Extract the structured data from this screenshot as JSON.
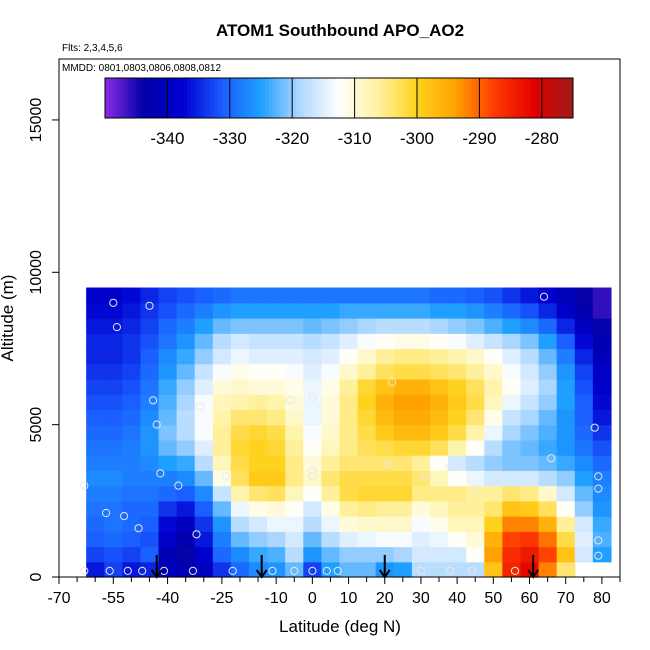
{
  "chart_data": {
    "type": "heatmap",
    "title": "ATOM1 Southbound APO_AO2",
    "flights_note": "Flts: 2,3,4,5,6",
    "dates_note": "MMDD: 0801,0803,0806,0808,0812",
    "xlabel": "Latitude (deg N)",
    "ylabel": "Altitude (m)",
    "xlim": [
      -70,
      85
    ],
    "ylim": [
      0,
      17000
    ],
    "x_ticks": [
      -70,
      -55,
      -40,
      -25,
      -10,
      0,
      10,
      20,
      30,
      40,
      50,
      60,
      70,
      80
    ],
    "x_tick_labels": [
      "-70",
      "-55",
      "-40",
      "-25",
      "-10",
      "0",
      "10",
      "20",
      "30",
      "40",
      "50",
      "60",
      "70",
      "80"
    ],
    "x_minor_ticks": [
      -65,
      -60,
      -50,
      -45,
      -35,
      -30,
      -20,
      -15,
      -5,
      5,
      15,
      25,
      35,
      45,
      55,
      65,
      75,
      85
    ],
    "y_ticks": [
      0,
      5000,
      10000,
      15000
    ],
    "y_tick_labels": [
      "0",
      "5000",
      "10000",
      "15000"
    ],
    "colorbar": {
      "range": [
        -350,
        -275
      ],
      "ticks": [
        -340,
        -330,
        -320,
        -310,
        -300,
        -290,
        -280
      ],
      "tick_labels": [
        "-340",
        "-330",
        "-320",
        "-310",
        "-300",
        "-290",
        "-280"
      ],
      "colors": [
        "#8a2be2",
        "#0000a8",
        "#0000d0",
        "#1a5cff",
        "#1f9fff",
        "#b0d8ff",
        "#ffffff",
        "#fff2a0",
        "#ffd21f",
        "#ffa000",
        "#ff3a00",
        "#e00000",
        "#9e1a1a"
      ]
    },
    "grid_columns": [
      -60,
      -55,
      -50,
      -45,
      -40,
      -35,
      -30,
      -25,
      -20,
      -15,
      -10,
      -5,
      0,
      5,
      10,
      15,
      20,
      25,
      30,
      35,
      40,
      45,
      50,
      55,
      60,
      65,
      70,
      75,
      80
    ],
    "grid_rows": [
      250,
      750,
      1250,
      1750,
      2250,
      2750,
      3250,
      3750,
      4250,
      4750,
      5250,
      5750,
      6250,
      6750,
      7250,
      7750,
      8250,
      8750,
      9250
    ],
    "grid_values": [
      [
        -336,
        -333,
        -336,
        -335,
        -341,
        -342,
        -340,
        -334,
        -330,
        -327,
        -326,
        -322,
        -333,
        -325,
        -322,
        -322,
        -326,
        -325,
        -318,
        -318,
        -318,
        -318,
        -298,
        -285,
        -282,
        -292,
        -304,
        null,
        null
      ],
      [
        -333,
        -332,
        -333,
        -331,
        -342,
        -344,
        -338,
        -330,
        -327,
        -324,
        -323,
        -318,
        -326,
        -322,
        -320,
        -320,
        -320,
        -319,
        -316,
        -316,
        -316,
        -312,
        -294,
        -286,
        -284,
        -288,
        -298,
        -316,
        -325
      ],
      [
        -331,
        -330,
        -331,
        -332,
        -339,
        -343,
        -336,
        -328,
        -322,
        -320,
        -319,
        -316,
        -322,
        -318,
        -315,
        -314,
        -313,
        -313,
        -315,
        -314,
        -312,
        -310,
        -296,
        -288,
        -287,
        -291,
        -302,
        -315,
        -323
      ],
      [
        -330,
        -329,
        -330,
        -331,
        -337,
        -340,
        -334,
        -326,
        -318,
        -316,
        -314,
        -314,
        -318,
        -314,
        -310,
        -309,
        -309,
        -309,
        -313,
        -311,
        -308,
        -308,
        -300,
        -292,
        -292,
        -296,
        -306,
        -316,
        -324
      ],
      [
        -329,
        -329,
        -330,
        -330,
        -334,
        -336,
        -331,
        -322,
        -314,
        -311,
        -310,
        -312,
        -316,
        -311,
        -306,
        -305,
        -306,
        -306,
        -310,
        -308,
        -306,
        -306,
        -304,
        -298,
        -299,
        -303,
        -312,
        -320,
        -326
      ],
      [
        -328,
        -328,
        -329,
        -329,
        -330,
        -331,
        -327,
        -317,
        -307,
        -304,
        -303,
        -308,
        -312,
        -306,
        -302,
        -301,
        -301,
        -301,
        -305,
        -305,
        -305,
        -306,
        -306,
        -304,
        -305,
        -309,
        -316,
        -322,
        -327
      ],
      [
        -327,
        -327,
        -328,
        -328,
        -328,
        -327,
        -322,
        -311,
        -303,
        -299,
        -299,
        -305,
        -309,
        -304,
        -302,
        -302,
        -302,
        -302,
        -304,
        -308,
        -312,
        -314,
        -316,
        -316,
        -316,
        -318,
        -320,
        -325,
        -328
      ],
      [
        -328,
        -328,
        -328,
        -327,
        -325,
        -324,
        -318,
        -308,
        -302,
        -300,
        -300,
        -305,
        -310,
        -306,
        -304,
        -304,
        -304,
        -304,
        -306,
        -312,
        -316,
        -318,
        -320,
        -321,
        -321,
        -322,
        -324,
        -327,
        -330
      ],
      [
        -329,
        -329,
        -328,
        -326,
        -322,
        -320,
        -315,
        -306,
        -301,
        -300,
        -301,
        -306,
        -312,
        -308,
        -305,
        -303,
        -302,
        -301,
        -301,
        -303,
        -307,
        -312,
        -318,
        -321,
        -322,
        -324,
        -326,
        -329,
        -332
      ],
      [
        -330,
        -330,
        -329,
        -326,
        -321,
        -318,
        -313,
        -306,
        -302,
        -301,
        -302,
        -307,
        -313,
        -309,
        -305,
        -302,
        -299,
        -297,
        -297,
        -299,
        -302,
        -307,
        -314,
        -319,
        -321,
        -323,
        -326,
        -330,
        -334
      ],
      [
        -331,
        -331,
        -330,
        -327,
        -322,
        -318,
        -313,
        -307,
        -304,
        -304,
        -305,
        -309,
        -314,
        -310,
        -305,
        -301,
        -297,
        -295,
        -295,
        -297,
        -300,
        -304,
        -311,
        -317,
        -319,
        -322,
        -326,
        -331,
        -336
      ],
      [
        -332,
        -332,
        -331,
        -328,
        -323,
        -319,
        -313,
        -308,
        -307,
        -306,
        -307,
        -310,
        -314,
        -310,
        -305,
        -300,
        -296,
        -294,
        -294,
        -296,
        -299,
        -302,
        -308,
        -314,
        -317,
        -320,
        -325,
        -331,
        -337
      ],
      [
        -333,
        -333,
        -332,
        -329,
        -324,
        -320,
        -315,
        -310,
        -309,
        -310,
        -310,
        -311,
        -314,
        -311,
        -306,
        -301,
        -298,
        -296,
        -296,
        -298,
        -300,
        -303,
        -307,
        -312,
        -315,
        -319,
        -325,
        -332,
        -338
      ],
      [
        -334,
        -334,
        -333,
        -330,
        -326,
        -322,
        -317,
        -313,
        -311,
        -312,
        -312,
        -313,
        -315,
        -313,
        -309,
        -306,
        -303,
        -302,
        -302,
        -303,
        -304,
        -306,
        -309,
        -313,
        -316,
        -320,
        -326,
        -333,
        -339
      ],
      [
        -335,
        -335,
        -334,
        -331,
        -327,
        -324,
        -320,
        -316,
        -314,
        -315,
        -315,
        -315,
        -316,
        -315,
        -312,
        -309,
        -306,
        -305,
        -305,
        -306,
        -307,
        -309,
        -312,
        -315,
        -318,
        -322,
        -328,
        -335,
        -341
      ],
      [
        -335,
        -335,
        -334,
        -332,
        -329,
        -326,
        -322,
        -318,
        -316,
        -317,
        -317,
        -317,
        -318,
        -317,
        -315,
        -313,
        -312,
        -311,
        -311,
        -312,
        -313,
        -315,
        -317,
        -319,
        -321,
        -325,
        -331,
        -337,
        -342
      ],
      [
        -336,
        -336,
        -335,
        -333,
        -330,
        -328,
        -325,
        -322,
        -321,
        -321,
        -321,
        -321,
        -322,
        -321,
        -320,
        -319,
        -318,
        -318,
        -318,
        -319,
        -320,
        -321,
        -323,
        -325,
        -327,
        -330,
        -335,
        -340,
        -344
      ],
      [
        -337,
        -337,
        -336,
        -334,
        -332,
        -330,
        -328,
        -326,
        -325,
        -325,
        -325,
        -325,
        -325,
        -325,
        -324,
        -324,
        -324,
        -324,
        -324,
        -325,
        -325,
        -326,
        -328,
        -330,
        -332,
        -335,
        -339,
        -343,
        -346
      ],
      [
        -338,
        -338,
        -337,
        -335,
        -333,
        -332,
        -331,
        -330,
        -329,
        -329,
        -329,
        -329,
        -329,
        -329,
        -329,
        -329,
        -329,
        -329,
        -329,
        -330,
        -330,
        -331,
        -332,
        -334,
        -336,
        -338,
        -341,
        -344,
        -346
      ]
    ],
    "observations": [
      {
        "x": -63,
        "y": 3000
      },
      {
        "x": -63,
        "y": 200
      },
      {
        "x": -57,
        "y": 2100
      },
      {
        "x": -56,
        "y": 200
      },
      {
        "x": -55,
        "y": 9000
      },
      {
        "x": -54,
        "y": 8200
      },
      {
        "x": -52,
        "y": 2000
      },
      {
        "x": -51,
        "y": 200
      },
      {
        "x": -48,
        "y": 1600
      },
      {
        "x": -47,
        "y": 200
      },
      {
        "x": -45,
        "y": 8900
      },
      {
        "x": -44,
        "y": 5800
      },
      {
        "x": -43,
        "y": 5000
      },
      {
        "x": -42,
        "y": 3400
      },
      {
        "x": -41,
        "y": 200
      },
      {
        "x": -37,
        "y": 3000
      },
      {
        "x": -33,
        "y": 200
      },
      {
        "x": -32,
        "y": 1400
      },
      {
        "x": -31,
        "y": 5600
      },
      {
        "x": -24,
        "y": 3300
      },
      {
        "x": -22,
        "y": 200
      },
      {
        "x": -11,
        "y": 200
      },
      {
        "x": -6,
        "y": 5800
      },
      {
        "x": -5,
        "y": 200
      },
      {
        "x": 0,
        "y": 5900
      },
      {
        "x": 0,
        "y": 3500
      },
      {
        "x": 0,
        "y": 3300
      },
      {
        "x": 0,
        "y": 200
      },
      {
        "x": 4,
        "y": 200
      },
      {
        "x": 7,
        "y": 200
      },
      {
        "x": 21,
        "y": 3700
      },
      {
        "x": 22,
        "y": 6400
      },
      {
        "x": 30,
        "y": 200
      },
      {
        "x": 31,
        "y": 3300
      },
      {
        "x": 38,
        "y": 3600
      },
      {
        "x": 38,
        "y": 200
      },
      {
        "x": 44,
        "y": 200
      },
      {
        "x": 45,
        "y": 2900
      },
      {
        "x": 56,
        "y": 200
      },
      {
        "x": 64,
        "y": 9200
      },
      {
        "x": 66,
        "y": 3900
      },
      {
        "x": 78,
        "y": 4900
      },
      {
        "x": 79,
        "y": 3300
      },
      {
        "x": 79,
        "y": 2900
      },
      {
        "x": 79,
        "y": 1200
      },
      {
        "x": 79,
        "y": 700
      }
    ],
    "arrow_markers": [
      -43,
      -14,
      20,
      61
    ]
  }
}
